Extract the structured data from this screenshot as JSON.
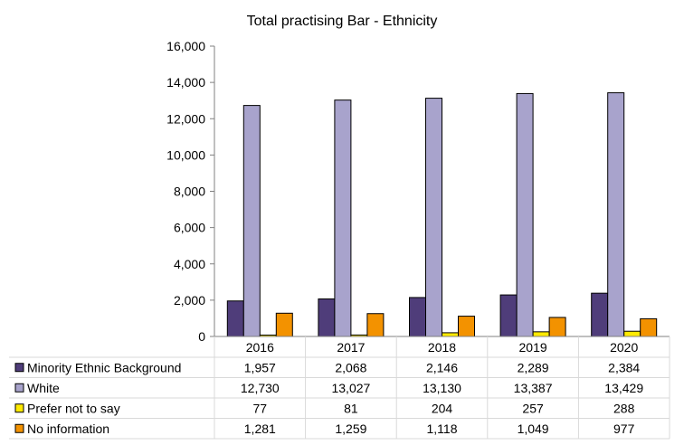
{
  "chart_data": {
    "type": "bar",
    "title": "Total practising Bar - Ethnicity",
    "xlabel": "",
    "ylabel": "",
    "categories": [
      "2016",
      "2017",
      "2018",
      "2019",
      "2020"
    ],
    "ylim": [
      0,
      16000
    ],
    "yticks": [
      "0",
      "2,000",
      "4,000",
      "6,000",
      "8,000",
      "10,000",
      "12,000",
      "14,000",
      "16,000"
    ],
    "grid": false,
    "legend": "data-table",
    "series": [
      {
        "name": "Minority Ethnic Background",
        "color": "#4f3d7a",
        "values": [
          1957,
          2068,
          2146,
          2289,
          2384
        ],
        "labels": [
          "1,957",
          "2,068",
          "2,146",
          "2,289",
          "2,384"
        ]
      },
      {
        "name": "White",
        "color": "#a8a3cc",
        "values": [
          12730,
          13027,
          13130,
          13387,
          13429
        ],
        "labels": [
          "12,730",
          "13,027",
          "13,130",
          "13,387",
          "13,429"
        ]
      },
      {
        "name": "Prefer not to say",
        "color": "#ffea00",
        "values": [
          77,
          81,
          204,
          257,
          288
        ],
        "labels": [
          "77",
          "81",
          "204",
          "257",
          "288"
        ]
      },
      {
        "name": "No information",
        "color": "#f39200",
        "values": [
          1281,
          1259,
          1118,
          1049,
          977
        ],
        "labels": [
          "1,281",
          "1,259",
          "1,118",
          "1,049",
          "977"
        ]
      }
    ]
  }
}
